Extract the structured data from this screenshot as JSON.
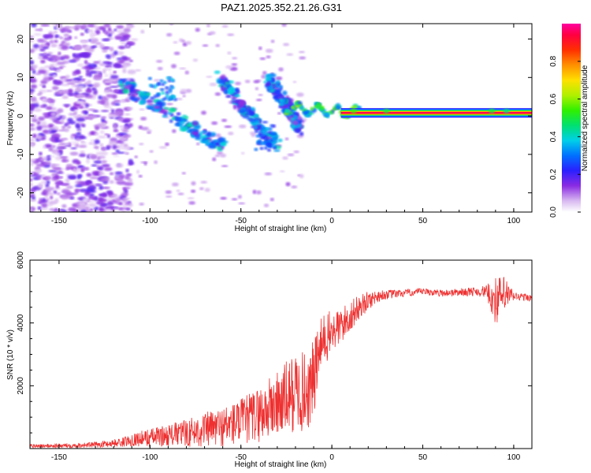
{
  "title": "PAZ1.2025.352.21.26.G31",
  "colors": {
    "snr_line": "#ee3030",
    "axis": "#000000",
    "background": "#ffffff"
  },
  "chart_data": [
    {
      "type": "heatmap",
      "name": "spectrogram",
      "xlabel": "Height of straight line (km)",
      "ylabel": "Frequency (Hz)",
      "xlim": [
        -166,
        110
      ],
      "ylim": [
        -25,
        24
      ],
      "xticks": [
        -150,
        -100,
        -50,
        0,
        50,
        100
      ],
      "yticks": [
        -20,
        -10,
        0,
        10,
        20
      ],
      "colorbar": {
        "label": "Normalized spectral amplitude",
        "range": [
          0,
          1
        ],
        "ticks": [
          0.0,
          0.2,
          0.4,
          0.6,
          0.8
        ],
        "tick_labels": [
          "0.0",
          "0.2",
          "0.4",
          "0.6",
          "0.8"
        ],
        "colormap": "rainbow (white-violet-blue-cyan-green-yellow-red-magenta)"
      },
      "features": [
        {
          "name": "noise_region",
          "x_range": [
            -166,
            -110
          ],
          "freq_range": [
            -25,
            24
          ],
          "amplitude": 0.1
        },
        {
          "name": "track_1",
          "x_start": -115,
          "x_end": -60,
          "freq_start": 8,
          "freq_end": -8,
          "amplitude": 0.35
        },
        {
          "name": "track_2",
          "x_start": -62,
          "x_end": -30,
          "freq_start": 10,
          "freq_end": -8,
          "amplitude": 0.35
        },
        {
          "name": "track_3",
          "x_start": -35,
          "x_end": -18,
          "freq_start": 10,
          "freq_end": -3,
          "amplitude": 0.3
        },
        {
          "name": "converging_signal",
          "x_start": -25,
          "x_end": 15,
          "freq_start": 2,
          "freq_end": 1,
          "amplitude": 0.5
        },
        {
          "name": "main_line",
          "x_start": 5,
          "x_end": 110,
          "freq": 0.8,
          "amplitude": 0.95
        }
      ]
    },
    {
      "type": "line",
      "name": "snr",
      "xlabel": "Height of straight line (km)",
      "ylabel": "SNR (10 * v/v)",
      "xlim": [
        -166,
        110
      ],
      "ylim": [
        0,
        6000
      ],
      "xticks": [
        -150,
        -100,
        -50,
        0,
        50,
        100
      ],
      "yticks": [
        2000,
        4000,
        6000
      ],
      "series": [
        {
          "name": "SNR",
          "x": [
            -166,
            -150,
            -130,
            -115,
            -110,
            -100,
            -90,
            -80,
            -70,
            -60,
            -50,
            -40,
            -30,
            -25,
            -20,
            -15,
            -12,
            -10,
            -8,
            -5,
            0,
            5,
            10,
            15,
            20,
            25,
            30,
            40,
            50,
            60,
            70,
            80,
            85,
            90,
            95,
            100,
            110
          ],
          "values": [
            80,
            90,
            120,
            200,
            280,
            350,
            420,
            500,
            600,
            700,
            850,
            1100,
            1400,
            1600,
            1800,
            1800,
            1900,
            2200,
            2800,
            3400,
            3700,
            3900,
            4200,
            4500,
            4700,
            4850,
            4900,
            4950,
            5000,
            4950,
            4980,
            5000,
            5000,
            4700,
            4900,
            4850,
            4800
          ],
          "noise_amplitude": [
            60,
            70,
            90,
            150,
            200,
            300,
            350,
            450,
            550,
            650,
            750,
            900,
            1100,
            1200,
            1300,
            1300,
            1300,
            1300,
            1100,
            900,
            700,
            600,
            500,
            400,
            300,
            200,
            150,
            120,
            110,
            110,
            120,
            150,
            200,
            800,
            600,
            150,
            100
          ]
        }
      ]
    }
  ]
}
